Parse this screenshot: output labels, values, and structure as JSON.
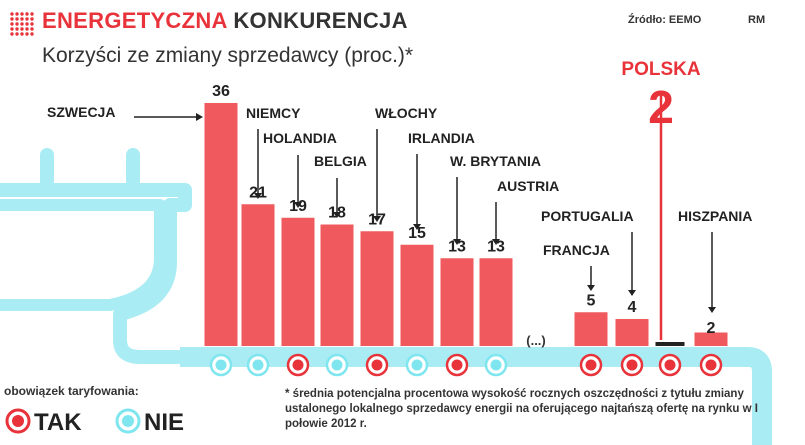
{
  "header": {
    "title_highlight": "ENERGETYCZNA",
    "title_rest": "KONKURENCJA",
    "subtitle": "Korzyści ze zmiany sprzedawcy (proc.)*",
    "source": "Źródło: EEMO",
    "author": "RM"
  },
  "legend": {
    "title": "obowiązek taryfowania:",
    "items": [
      {
        "label": "TAK",
        "color": "#e8333a"
      },
      {
        "label": "NIE",
        "color": "#7fe6ef"
      }
    ]
  },
  "footnote": "* średnia potencjalna procentowa wysokość rocznych oszczędności z tytułu zmiany ustalonego lokalnego sprzedawcy energii na oferującego najtańszą ofertę na rynku w I połowie 2012 r.",
  "colors": {
    "bar": "#f05a5e",
    "accent": "#e8333a",
    "plug": "#a9ecf3",
    "dot_tak": "#e8333a",
    "dot_nie": "#7fe6ef",
    "text": "#333333"
  },
  "chart_data": {
    "type": "bar",
    "title": "Korzyści ze zmiany sprzedawcy (proc.)*",
    "categories": [
      "SZWECJA",
      "NIEMCY",
      "HOLANDIA",
      "BELGIA",
      "WŁOCHY",
      "IRLANDIA",
      "W. BRYTANIA",
      "AUSTRIA",
      "(...)",
      "FRANCJA",
      "PORTUGALIA",
      "POLSKA",
      "HISZPANIA"
    ],
    "values": [
      36,
      21,
      19,
      18,
      17,
      15,
      13,
      13,
      null,
      5,
      4,
      2,
      2
    ],
    "value_labels": [
      "36",
      "21",
      "19",
      "18",
      "17",
      "15",
      "13",
      "13",
      "",
      "5",
      "4",
      "2",
      "2"
    ],
    "obowiazek_taryfowania": [
      "NIE",
      "NIE",
      "TAK",
      "NIE",
      "TAK",
      "NIE",
      "TAK",
      "NIE",
      null,
      "TAK",
      "TAK",
      "TAK",
      "TAK"
    ],
    "highlight": {
      "country": "POLSKA",
      "value": "2"
    },
    "ellipsis_label": "(...)"
  }
}
